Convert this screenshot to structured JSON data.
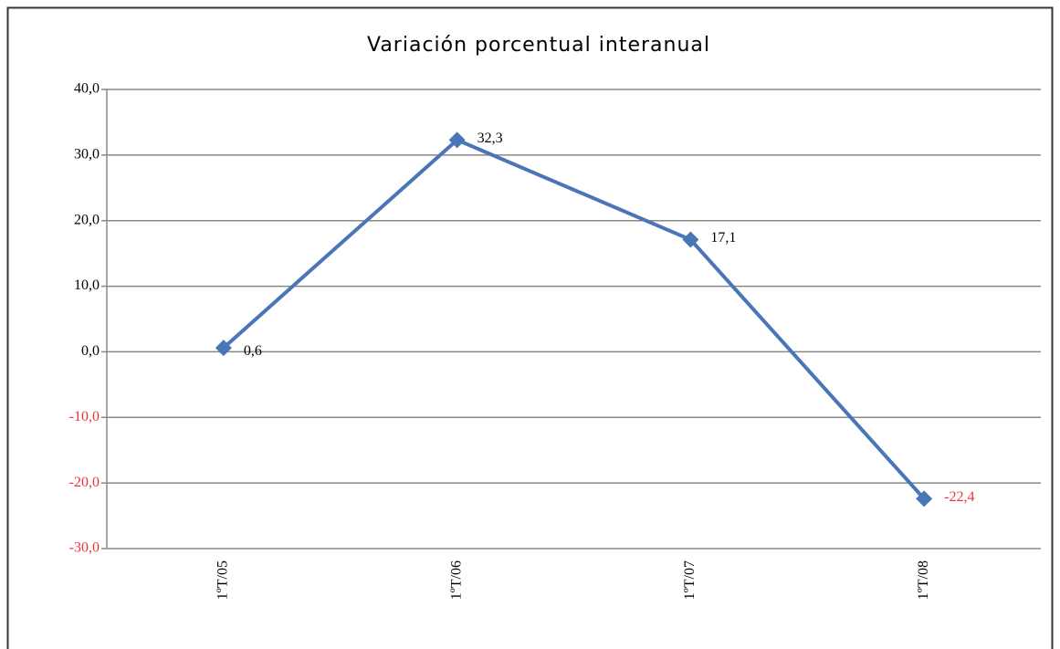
{
  "chart_data": {
    "type": "line",
    "title": "Variación porcentual interanual",
    "categories": [
      "1ºT/05",
      "1ºT/06",
      "1ºT/07",
      "1ºT/08"
    ],
    "series": [
      {
        "name": "Variación porcentual interanual",
        "color": "#4a76b8",
        "values": [
          0.6,
          32.3,
          17.1,
          -22.4
        ],
        "value_labels": [
          "0,6",
          "32,3",
          "17,1",
          "-22,4"
        ]
      }
    ],
    "ylim": [
      -30,
      40
    ],
    "yticks": [
      {
        "value": -30,
        "label": "-30,0"
      },
      {
        "value": -20,
        "label": "-20,0"
      },
      {
        "value": -10,
        "label": "-10,0"
      },
      {
        "value": 0,
        "label": "0,0"
      },
      {
        "value": 10,
        "label": "10,0"
      },
      {
        "value": 20,
        "label": "20,0"
      },
      {
        "value": 30,
        "label": "30,0"
      },
      {
        "value": 40,
        "label": "40,0"
      }
    ],
    "grid": true,
    "negative_color": "#e8343a"
  }
}
